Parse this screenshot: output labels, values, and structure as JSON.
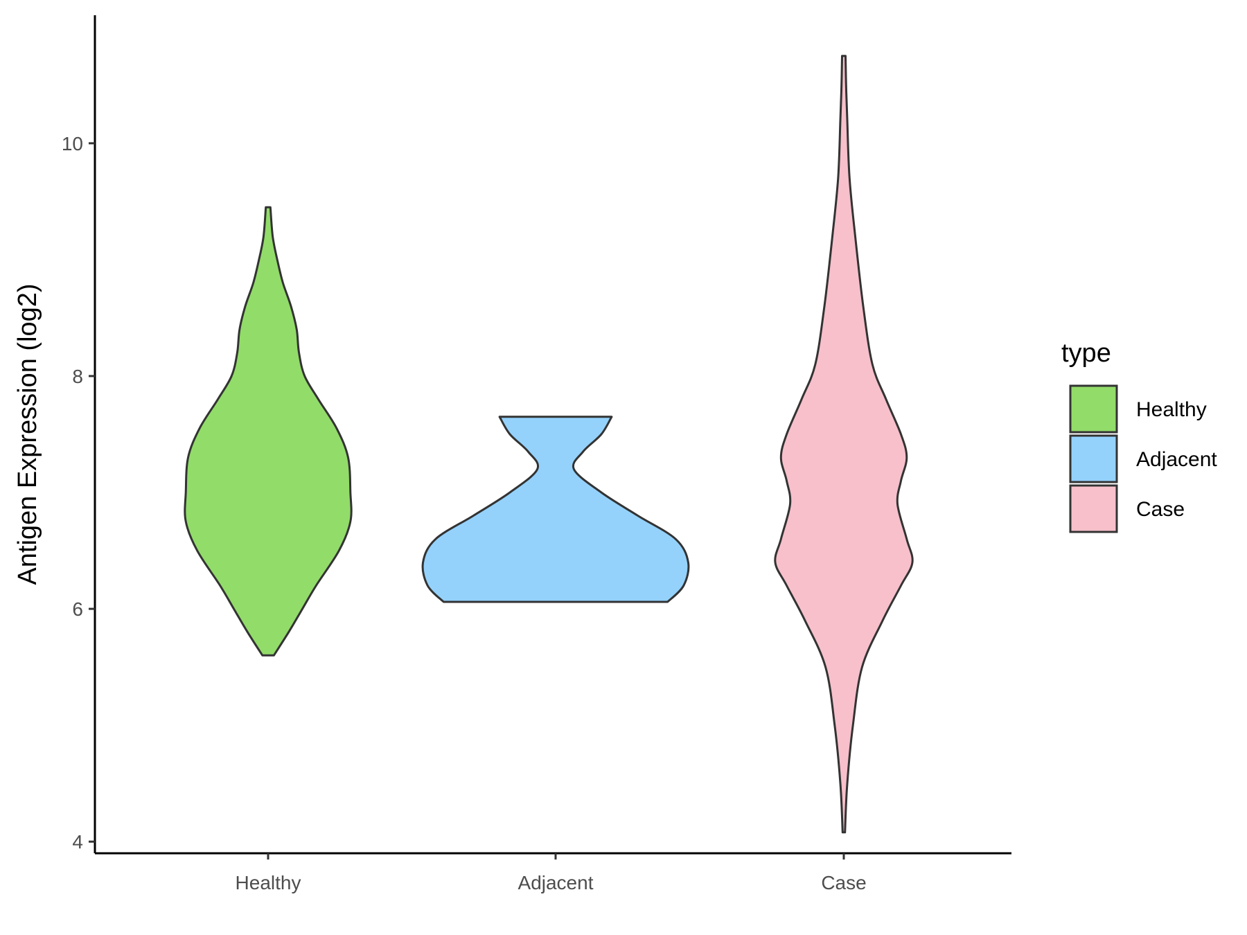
{
  "chart_data": {
    "type": "violin",
    "title": "",
    "xlabel": "",
    "ylabel": "Antigen Expression (log2)",
    "ylim": [
      3.9,
      11.1
    ],
    "yticks": [
      4,
      6,
      8,
      10
    ],
    "grid": false,
    "categories": [
      "Healthy",
      "Adjacent",
      "Case"
    ],
    "legend": {
      "title": "type",
      "position": "right",
      "entries": [
        "Healthy",
        "Adjacent",
        "Case"
      ]
    },
    "colors": {
      "Healthy": "#92dc6a",
      "Adjacent": "#94d2fc",
      "Case": "#f7c0cb",
      "outline": "#333333"
    },
    "series": [
      {
        "category": "Healthy",
        "min": 5.6,
        "max": 9.45,
        "density": [
          [
            5.6,
            0.05
          ],
          [
            5.8,
            0.18
          ],
          [
            6.0,
            0.3
          ],
          [
            6.2,
            0.42
          ],
          [
            6.5,
            0.62
          ],
          [
            6.75,
            0.72
          ],
          [
            7.0,
            0.72
          ],
          [
            7.3,
            0.7
          ],
          [
            7.55,
            0.6
          ],
          [
            7.8,
            0.44
          ],
          [
            8.0,
            0.32
          ],
          [
            8.2,
            0.27
          ],
          [
            8.4,
            0.25
          ],
          [
            8.6,
            0.2
          ],
          [
            8.8,
            0.13
          ],
          [
            9.0,
            0.08
          ],
          [
            9.2,
            0.04
          ],
          [
            9.45,
            0.02
          ]
        ]
      },
      {
        "category": "Adjacent",
        "min": 6.06,
        "max": 7.65,
        "density": [
          [
            6.06,
            0.98
          ],
          [
            6.2,
            1.12
          ],
          [
            6.4,
            1.16
          ],
          [
            6.6,
            1.05
          ],
          [
            6.8,
            0.72
          ],
          [
            7.0,
            0.4
          ],
          [
            7.2,
            0.16
          ],
          [
            7.35,
            0.24
          ],
          [
            7.5,
            0.4
          ],
          [
            7.65,
            0.49
          ]
        ]
      },
      {
        "category": "Case",
        "min": 4.08,
        "max": 10.75,
        "density": [
          [
            4.08,
            0.01
          ],
          [
            4.5,
            0.03
          ],
          [
            5.0,
            0.08
          ],
          [
            5.5,
            0.16
          ],
          [
            5.9,
            0.34
          ],
          [
            6.2,
            0.5
          ],
          [
            6.4,
            0.6
          ],
          [
            6.6,
            0.55
          ],
          [
            6.9,
            0.47
          ],
          [
            7.1,
            0.5
          ],
          [
            7.3,
            0.55
          ],
          [
            7.5,
            0.5
          ],
          [
            7.8,
            0.37
          ],
          [
            8.1,
            0.25
          ],
          [
            8.6,
            0.17
          ],
          [
            9.2,
            0.1
          ],
          [
            9.7,
            0.05
          ],
          [
            10.2,
            0.03
          ],
          [
            10.5,
            0.02
          ],
          [
            10.75,
            0.015
          ]
        ]
      }
    ]
  }
}
